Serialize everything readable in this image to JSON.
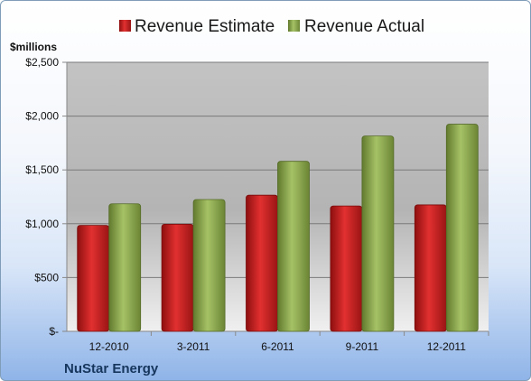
{
  "chart_data": {
    "type": "bar",
    "unit_label": "$millions",
    "company": "NuStar Energy",
    "categories": [
      "12-2010",
      "3-2011",
      "6-2011",
      "9-2011",
      "12-2011"
    ],
    "series": [
      {
        "name": "Revenue Estimate",
        "color": "#cc1f1f",
        "values": [
          985,
          995,
          1265,
          1165,
          1175
        ]
      },
      {
        "name": "Revenue Actual",
        "color": "#8faa4e",
        "values": [
          1185,
          1225,
          1580,
          1815,
          1925
        ]
      }
    ],
    "ylim": [
      0,
      2500
    ],
    "yticks": [
      0,
      500,
      1000,
      1500,
      2000,
      2500
    ],
    "ytick_labels": [
      "$-",
      "$500",
      "$1,000",
      "$1,500",
      "$2,000",
      "$2,500"
    ],
    "grid": true,
    "legend_position": "top"
  }
}
